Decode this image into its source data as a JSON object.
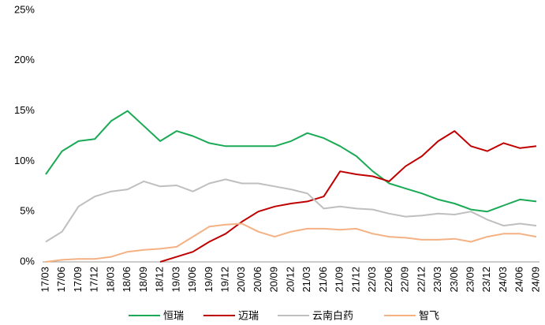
{
  "chart_data": {
    "type": "line",
    "categories": [
      "17/03",
      "17/06",
      "17/09",
      "17/12",
      "18/03",
      "18/06",
      "18/09",
      "18/12",
      "19/03",
      "19/06",
      "19/09",
      "19/12",
      "20/03",
      "20/06",
      "20/09",
      "20/12",
      "21/03",
      "21/06",
      "21/09",
      "21/12",
      "22/03",
      "22/06",
      "22/09",
      "22/12",
      "23/03",
      "23/06",
      "23/09",
      "23/12",
      "24/03",
      "24/06",
      "24/09"
    ],
    "series": [
      {
        "name": "恒瑞",
        "color": "#1aaa55",
        "values": [
          8.7,
          11,
          12,
          12.2,
          14,
          15,
          13.5,
          12,
          13,
          12.5,
          11.8,
          11.5,
          11.5,
          11.5,
          11.5,
          12,
          12.8,
          12.3,
          11.5,
          10.5,
          9,
          7.8,
          7.3,
          6.8,
          6.2,
          5.8,
          5.2,
          5,
          5.6,
          6.2,
          6
        ]
      },
      {
        "name": "迈瑞",
        "color": "#c00000",
        "values": [
          null,
          null,
          null,
          null,
          null,
          null,
          null,
          0,
          0.5,
          1,
          2,
          2.8,
          4,
          5,
          5.5,
          5.8,
          6,
          6.5,
          9,
          8.7,
          8.5,
          8,
          9.5,
          10.5,
          12,
          13,
          11.5,
          11,
          11.8,
          11.3,
          11.5
        ]
      },
      {
        "name": "云南白药",
        "color": "#bfbfbf",
        "values": [
          2,
          3,
          5.5,
          6.5,
          7,
          7.2,
          8,
          7.5,
          7.6,
          7,
          7.8,
          8.2,
          7.8,
          7.8,
          7.5,
          7.2,
          6.8,
          5.3,
          5.5,
          5.3,
          5.2,
          4.8,
          4.5,
          4.6,
          4.8,
          4.7,
          5,
          4.2,
          3.6,
          3.8,
          3.6
        ]
      },
      {
        "name": "智飞",
        "color": "#f4b183",
        "values": [
          0,
          0.2,
          0.3,
          0.3,
          0.5,
          1,
          1.2,
          1.3,
          1.5,
          2.5,
          3.5,
          3.7,
          3.8,
          3,
          2.5,
          3,
          3.3,
          3.3,
          3.2,
          3.3,
          2.8,
          2.5,
          2.4,
          2.2,
          2.2,
          2.3,
          2,
          2.5,
          2.8,
          2.8,
          2.5
        ]
      }
    ],
    "ylim": [
      0,
      25
    ],
    "yticks": [
      {
        "value": 0,
        "label": "0%"
      },
      {
        "value": 5,
        "label": "5%"
      },
      {
        "value": 10,
        "label": "10%"
      },
      {
        "value": 15,
        "label": "15%"
      },
      {
        "value": 20,
        "label": "20%"
      },
      {
        "value": 25,
        "label": "25%"
      }
    ],
    "legend": "bottom"
  }
}
